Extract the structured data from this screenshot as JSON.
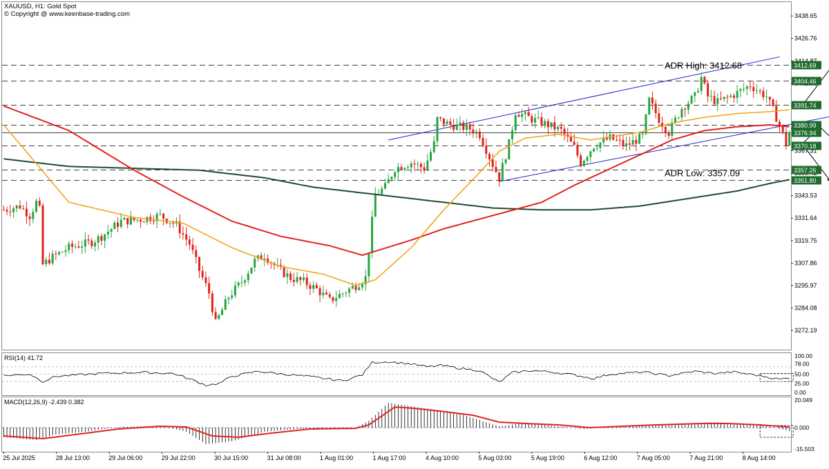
{
  "header": {
    "title": "XAUUSD, H1:  Gold Spot",
    "credit": "© Copyright @ www.keenbase-trading.com"
  },
  "colors": {
    "bull": "#26a541",
    "bear": "#e0231c",
    "ma_fast": "#f0a61e",
    "ma_mid": "#e0231c",
    "ma_slow": "#1f4a2c",
    "channel": "#1f23c8",
    "level_bg": "#1e6b2e",
    "macd_signal": "#e0231c",
    "macd_hist": "#000000",
    "rsi_line": "#000000"
  },
  "chart_data": [
    {
      "type": "candlestick",
      "panel": "price",
      "symbol": "XAUUSD",
      "timeframe": "H1",
      "ylim": [
        3262,
        3446
      ],
      "y_ticks": [
        "3438.65",
        "3426.76",
        "3414.87",
        "3402.98",
        "3391.09",
        "3379.20",
        "3367.31",
        "3355.42",
        "3343.53",
        "3331.64",
        "3319.75",
        "3307.86",
        "3295.97",
        "3284.08",
        "3272.19"
      ],
      "x_ticks": [
        "25 Jul 2025",
        "28 Jul 13:00",
        "29 Jul 06:00",
        "29 Jul 22:00",
        "30 Jul 15:00",
        "31 Jul 08:00",
        "1 Aug 01:00",
        "1 Aug 17:00",
        "4 Aug 10:00",
        "5 Aug 03:00",
        "5 Aug 19:00",
        "6 Aug 12:00",
        "7 Aug 05:00",
        "7 Aug 21:00",
        "8 Aug 14:00"
      ],
      "close_path": [
        [
          0,
          3336
        ],
        [
          5,
          3338
        ],
        [
          8,
          3333
        ],
        [
          10,
          3340
        ],
        [
          11,
          3336
        ],
        [
          12,
          3307
        ],
        [
          15,
          3311
        ],
        [
          20,
          3316
        ],
        [
          27,
          3319
        ],
        [
          30,
          3322
        ],
        [
          36,
          3330
        ],
        [
          42,
          3331
        ],
        [
          48,
          3333
        ],
        [
          53,
          3328
        ],
        [
          57,
          3318
        ],
        [
          60,
          3304
        ],
        [
          63,
          3292
        ],
        [
          65,
          3276
        ],
        [
          67,
          3283
        ],
        [
          69,
          3290
        ],
        [
          73,
          3298
        ],
        [
          77,
          3309
        ],
        [
          80,
          3312
        ],
        [
          84,
          3305
        ],
        [
          88,
          3300
        ],
        [
          92,
          3298
        ],
        [
          96,
          3294
        ],
        [
          100,
          3288
        ],
        [
          104,
          3292
        ],
        [
          108,
          3296
        ],
        [
          111,
          3300
        ],
        [
          113,
          3330
        ],
        [
          114,
          3344
        ],
        [
          117,
          3348
        ],
        [
          120,
          3358
        ],
        [
          125,
          3361
        ],
        [
          129,
          3358
        ],
        [
          132,
          3371
        ],
        [
          133,
          3384
        ],
        [
          137,
          3381
        ],
        [
          143,
          3379
        ],
        [
          146,
          3376
        ],
        [
          150,
          3360
        ],
        [
          152,
          3353
        ],
        [
          155,
          3371
        ],
        [
          157,
          3388
        ],
        [
          162,
          3384
        ],
        [
          167,
          3381
        ],
        [
          171,
          3378
        ],
        [
          175,
          3369
        ],
        [
          177,
          3361
        ],
        [
          181,
          3370
        ],
        [
          186,
          3374
        ],
        [
          191,
          3370
        ],
        [
          196,
          3375
        ],
        [
          198,
          3394
        ],
        [
          201,
          3384
        ],
        [
          204,
          3377
        ],
        [
          208,
          3390
        ],
        [
          212,
          3396
        ],
        [
          214,
          3406
        ],
        [
          216,
          3396
        ],
        [
          219,
          3393
        ],
        [
          224,
          3397
        ],
        [
          229,
          3402
        ],
        [
          234,
          3396
        ],
        [
          237,
          3385
        ],
        [
          238,
          3381
        ],
        [
          240,
          3371
        ],
        [
          241,
          3377
        ]
      ],
      "ma_fast": [
        [
          0,
          3381
        ],
        [
          20,
          3340
        ],
        [
          40,
          3332
        ],
        [
          55,
          3329
        ],
        [
          70,
          3316
        ],
        [
          85,
          3306
        ],
        [
          98,
          3302
        ],
        [
          108,
          3296
        ],
        [
          114,
          3299
        ],
        [
          125,
          3316
        ],
        [
          135,
          3336
        ],
        [
          145,
          3354
        ],
        [
          152,
          3367
        ],
        [
          160,
          3374
        ],
        [
          170,
          3376
        ],
        [
          180,
          3373
        ],
        [
          195,
          3377
        ],
        [
          205,
          3382
        ],
        [
          215,
          3385
        ],
        [
          225,
          3387
        ],
        [
          235,
          3388
        ],
        [
          241,
          3389
        ]
      ],
      "ma_mid": [
        [
          0,
          3391
        ],
        [
          20,
          3378
        ],
        [
          40,
          3357
        ],
        [
          55,
          3343
        ],
        [
          70,
          3330
        ],
        [
          85,
          3322
        ],
        [
          100,
          3317
        ],
        [
          110,
          3312
        ],
        [
          125,
          3320
        ],
        [
          135,
          3326
        ],
        [
          150,
          3333
        ],
        [
          165,
          3340
        ],
        [
          175,
          3349
        ],
        [
          190,
          3361
        ],
        [
          205,
          3373
        ],
        [
          215,
          3378
        ],
        [
          225,
          3380
        ],
        [
          235,
          3381
        ],
        [
          241,
          3380
        ]
      ],
      "ma_slow": [
        [
          0,
          3363
        ],
        [
          20,
          3359
        ],
        [
          40,
          3358
        ],
        [
          60,
          3357
        ],
        [
          80,
          3353
        ],
        [
          95,
          3348
        ],
        [
          110,
          3345
        ],
        [
          130,
          3341
        ],
        [
          150,
          3337
        ],
        [
          165,
          3336
        ],
        [
          180,
          3336
        ],
        [
          195,
          3338
        ],
        [
          210,
          3342
        ],
        [
          225,
          3346
        ],
        [
          235,
          3350
        ],
        [
          241,
          3352
        ]
      ],
      "channel_upper": [
        [
          118,
          3373
        ],
        [
          238,
          3417
        ]
      ],
      "channel_lower": [
        [
          152,
          3351
        ],
        [
          273,
          3392
        ]
      ],
      "level_lines": [
        {
          "value": 3412.69,
          "label": "3412.69",
          "style": "dashed"
        },
        {
          "value": 3404.46,
          "label": "3404.46",
          "style": "dashed"
        },
        {
          "value": 3391.74,
          "label": "3391.74",
          "style": "dashed"
        },
        {
          "value": 3380.99,
          "label": "3380.99",
          "style": "dashed"
        },
        {
          "value": 3376.94,
          "label": "3376.94",
          "style": "solid"
        },
        {
          "value": 3370.18,
          "label": "3370.18",
          "style": "dashed"
        },
        {
          "value": 3357.26,
          "label": "3357.26",
          "style": "dashed"
        },
        {
          "value": 3351.8,
          "label": "3351.80",
          "style": "dashed"
        }
      ],
      "annotations": [
        {
          "text": "ADR High: 3412.68"
        },
        {
          "text": "ADR Low: 3357.09"
        }
      ]
    },
    {
      "type": "line",
      "panel": "rsi",
      "title": "RSI(14) 41.72",
      "ylim": [
        0,
        100
      ],
      "y_ticks": [
        "100.00",
        "78.00",
        "50.00",
        "25.00",
        "0.00"
      ],
      "levels": [
        70,
        50,
        30
      ],
      "path": [
        [
          0,
          46
        ],
        [
          8,
          50
        ],
        [
          12,
          30
        ],
        [
          16,
          44
        ],
        [
          30,
          52
        ],
        [
          42,
          55
        ],
        [
          52,
          52
        ],
        [
          58,
          34
        ],
        [
          62,
          20
        ],
        [
          66,
          24
        ],
        [
          70,
          44
        ],
        [
          78,
          58
        ],
        [
          86,
          50
        ],
        [
          95,
          42
        ],
        [
          104,
          32
        ],
        [
          110,
          48
        ],
        [
          113,
          82
        ],
        [
          118,
          84
        ],
        [
          125,
          78
        ],
        [
          130,
          70
        ],
        [
          134,
          74
        ],
        [
          140,
          66
        ],
        [
          146,
          60
        ],
        [
          150,
          38
        ],
        [
          152,
          28
        ],
        [
          156,
          54
        ],
        [
          162,
          60
        ],
        [
          168,
          56
        ],
        [
          175,
          48
        ],
        [
          181,
          38
        ],
        [
          186,
          50
        ],
        [
          196,
          56
        ],
        [
          204,
          46
        ],
        [
          212,
          58
        ],
        [
          218,
          52
        ],
        [
          224,
          56
        ],
        [
          232,
          46
        ],
        [
          238,
          36
        ],
        [
          241,
          40
        ]
      ]
    },
    {
      "type": "bar+line",
      "panel": "macd",
      "title": "MACD(12,26,9) -2.439 0.382",
      "ylim": [
        -15.503,
        20.049
      ],
      "y_ticks": [
        "20.049",
        "0.000",
        "-15.503"
      ],
      "histogram": [
        [
          0,
          -7
        ],
        [
          10,
          -9
        ],
        [
          16,
          -5
        ],
        [
          25,
          -3
        ],
        [
          35,
          0.5
        ],
        [
          48,
          1.5
        ],
        [
          56,
          -3
        ],
        [
          62,
          -12
        ],
        [
          70,
          -10
        ],
        [
          80,
          -3
        ],
        [
          90,
          -1
        ],
        [
          100,
          -0.5
        ],
        [
          108,
          0
        ],
        [
          112,
          5
        ],
        [
          118,
          18
        ],
        [
          124,
          16
        ],
        [
          132,
          13
        ],
        [
          140,
          10
        ],
        [
          148,
          4
        ],
        [
          152,
          1
        ],
        [
          158,
          3
        ],
        [
          166,
          2
        ],
        [
          172,
          0.5
        ],
        [
          178,
          -1
        ],
        [
          186,
          0.5
        ],
        [
          196,
          2
        ],
        [
          210,
          3
        ],
        [
          218,
          4
        ],
        [
          226,
          3
        ],
        [
          234,
          1.5
        ],
        [
          238,
          -1
        ],
        [
          241,
          -2.4
        ]
      ],
      "signal": [
        [
          0,
          -6
        ],
        [
          12,
          -8
        ],
        [
          22,
          -5
        ],
        [
          35,
          -1
        ],
        [
          48,
          1
        ],
        [
          56,
          0.5
        ],
        [
          64,
          -6
        ],
        [
          72,
          -7
        ],
        [
          82,
          -4
        ],
        [
          94,
          -1
        ],
        [
          108,
          -0.5
        ],
        [
          112,
          2
        ],
        [
          120,
          15
        ],
        [
          126,
          14
        ],
        [
          134,
          12
        ],
        [
          144,
          9
        ],
        [
          152,
          4
        ],
        [
          160,
          3
        ],
        [
          170,
          2
        ],
        [
          180,
          0
        ],
        [
          190,
          1
        ],
        [
          200,
          2
        ],
        [
          214,
          3
        ],
        [
          222,
          3
        ],
        [
          232,
          2
        ],
        [
          241,
          0.4
        ]
      ]
    }
  ]
}
